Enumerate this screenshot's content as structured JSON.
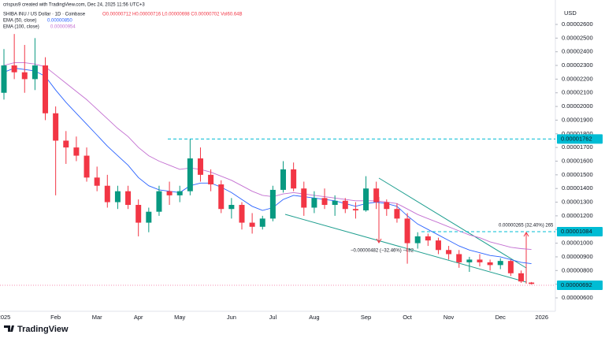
{
  "header": {
    "credit": "crispus9 created with TradingView.com, Dec 24, 2025 11:56 UTC+3",
    "symbol": "SHIBA INU / US Dollar · 1D · Coinbase",
    "ohlc": "O0.00000712 H0.00000716 L0.00000698 C0.00000702 Vol60.64B",
    "currency": "USD",
    "logo": "TradingView"
  },
  "chart_data": {
    "type": "candlestick",
    "categories": [
      "2025",
      null,
      null,
      null,
      null,
      "Feb",
      null,
      null,
      null,
      "Mar",
      null,
      null,
      null,
      "Apr",
      null,
      null,
      null,
      "May",
      null,
      null,
      null,
      null,
      "Jun",
      null,
      null,
      null,
      "Jul",
      null,
      null,
      null,
      "Aug",
      null,
      null,
      null,
      null,
      "Sep",
      null,
      null,
      null,
      "Oct",
      null,
      null,
      null,
      "Nov",
      null,
      null,
      null,
      null,
      "Dec",
      null,
      null,
      null,
      "2026"
    ],
    "open": [
      2.1e-05,
      2.3e-05,
      2.25e-05,
      2.2e-05,
      2.3e-05,
      1.95e-05,
      1.75e-05,
      1.7e-05,
      1.64e-05,
      1.48e-05,
      1.42e-05,
      1.3e-05,
      1.38e-05,
      1.28e-05,
      1.15e-05,
      1.23e-05,
      1.38e-05,
      1.35e-05,
      1.38e-05,
      1.62e-05,
      1.5e-05,
      1.43e-05,
      1.25e-05,
      1.28e-05,
      1.15e-05,
      1.12e-05,
      1.18e-05,
      1.39e-05,
      1.54e-05,
      1.4e-05,
      1.26e-05,
      1.33e-05,
      1.28e-05,
      1.31e-05,
      1.25e-05,
      1.24e-05,
      1.4e-05,
      1.3e-05,
      1.25e-05,
      1.18e-05,
      1e-05,
      1.05e-05,
      1.02e-05,
      9.5e-06,
      9.2e-06,
      8.6e-06,
      8.8e-06,
      8.6e-06,
      8.4e-06,
      8.7e-06,
      7.8e-06,
      7.12e-06,
      null
    ],
    "high": [
      2.42e-05,
      2.53e-05,
      2.45e-05,
      2.5e-05,
      2.36e-05,
      2e-05,
      1.82e-05,
      1.78e-05,
      1.7e-05,
      1.56e-05,
      1.5e-05,
      1.42e-05,
      1.42e-05,
      1.32e-05,
      1.26e-05,
      1.42e-05,
      1.45e-05,
      1.42e-05,
      1.762e-05,
      1.7e-05,
      1.54e-05,
      1.46e-05,
      1.33e-05,
      1.3e-05,
      1.22e-05,
      1.2e-05,
      1.42e-05,
      1.6e-05,
      1.59e-05,
      1.45e-05,
      1.38e-05,
      1.4e-05,
      1.35e-05,
      1.33e-05,
      1.3e-05,
      1.49e-05,
      1.45e-05,
      1.32e-05,
      1.29e-05,
      1.22e-05,
      1.08e-05,
      1.07e-05,
      1.04e-05,
      9.8e-06,
      9.5e-06,
      9e-06,
      9.2e-06,
      8.8e-06,
      8.9e-06,
      8.8e-06,
      8e-06,
      7.16e-06,
      null
    ],
    "low": [
      2.05e-05,
      2.2e-05,
      2.1e-05,
      2.12e-05,
      1.9e-05,
      1.35e-05,
      1.58e-05,
      1.6e-05,
      1.45e-05,
      1.38e-05,
      1.26e-05,
      1.25e-05,
      1.25e-05,
      1.05e-05,
      1.08e-05,
      1.2e-05,
      1.28e-05,
      1.3e-05,
      1.35e-05,
      1.45e-05,
      1.38e-05,
      1.22e-05,
      1.18e-05,
      1.1e-05,
      1.07e-05,
      1.1e-05,
      1.16e-05,
      1.37e-05,
      1.38e-05,
      1.2e-05,
      1.22e-05,
      1.25e-05,
      1.2e-05,
      1.22e-05,
      1.18e-05,
      1.23e-05,
      1.25e-05,
      1.2e-05,
      1.15e-05,
      8.5e-06,
      9.6e-06,
      9.8e-06,
      9.2e-06,
      8.8e-06,
      8.2e-06,
      7.9e-06,
      8.3e-06,
      8e-06,
      8.1e-06,
      7.6e-06,
      7.1e-06,
      6.98e-06,
      null
    ],
    "close": [
      2.3e-05,
      2.25e-05,
      2.2e-05,
      2.3e-05,
      1.95e-05,
      1.75e-05,
      1.7e-05,
      1.64e-05,
      1.48e-05,
      1.42e-05,
      1.3e-05,
      1.38e-05,
      1.28e-05,
      1.15e-05,
      1.23e-05,
      1.38e-05,
      1.35e-05,
      1.38e-05,
      1.62e-05,
      1.5e-05,
      1.43e-05,
      1.25e-05,
      1.28e-05,
      1.15e-05,
      1.12e-05,
      1.18e-05,
      1.39e-05,
      1.54e-05,
      1.4e-05,
      1.26e-05,
      1.33e-05,
      1.28e-05,
      1.31e-05,
      1.25e-05,
      1.24e-05,
      1.4e-05,
      1.3e-05,
      1.25e-05,
      1.18e-05,
      1e-05,
      1.05e-05,
      1.02e-05,
      9.5e-06,
      9.2e-06,
      8.6e-06,
      8.8e-06,
      8.6e-06,
      8.4e-06,
      8.7e-06,
      7.8e-06,
      7.2e-06,
      7.02e-06,
      null
    ],
    "up_color": "#089981",
    "down_color": "#f23645",
    "lines": [
      {
        "name": "EMA (50, close)",
        "legend_value": "0.00000850",
        "color": "#2962ff",
        "values": [
          2.25e-05,
          2.28e-05,
          2.27e-05,
          2.26e-05,
          2.22e-05,
          2.12e-05,
          2.03e-05,
          1.95e-05,
          1.87e-05,
          1.79e-05,
          1.71e-05,
          1.64e-05,
          1.57e-05,
          1.48e-05,
          1.42e-05,
          1.39e-05,
          1.38e-05,
          1.37e-05,
          1.42e-05,
          1.44e-05,
          1.44e-05,
          1.41e-05,
          1.37e-05,
          1.32e-05,
          1.27e-05,
          1.24e-05,
          1.26e-05,
          1.32e-05,
          1.35e-05,
          1.34e-05,
          1.33e-05,
          1.32e-05,
          1.31e-05,
          1.29e-05,
          1.27e-05,
          1.29e-05,
          1.3e-05,
          1.29e-05,
          1.27e-05,
          1.2e-05,
          1.14e-05,
          1.1e-05,
          1.06e-05,
          1.02e-05,
          9.8e-06,
          9.5e-06,
          9.3e-06,
          9.1e-06,
          9e-06,
          8.8e-06,
          8.6e-06,
          8.5e-06,
          null
        ]
      },
      {
        "name": "EMA (100, close)",
        "legend_value": "0.00000954",
        "color": "#c36fd1",
        "values": [
          2.3e-05,
          2.32e-05,
          2.32e-05,
          2.31e-05,
          2.29e-05,
          2.23e-05,
          2.17e-05,
          2.11e-05,
          2.05e-05,
          1.98e-05,
          1.91e-05,
          1.84e-05,
          1.78e-05,
          1.7e-05,
          1.64e-05,
          1.6e-05,
          1.57e-05,
          1.54e-05,
          1.55e-05,
          1.54e-05,
          1.52e-05,
          1.49e-05,
          1.46e-05,
          1.42e-05,
          1.38e-05,
          1.35e-05,
          1.34e-05,
          1.36e-05,
          1.37e-05,
          1.36e-05,
          1.35e-05,
          1.34e-05,
          1.33e-05,
          1.32e-05,
          1.31e-05,
          1.31e-05,
          1.31e-05,
          1.3e-05,
          1.29e-05,
          1.25e-05,
          1.21e-05,
          1.18e-05,
          1.15e-05,
          1.12e-05,
          1.09e-05,
          1.06e-05,
          1.04e-05,
          1.01e-05,
          9.9e-06,
          9.7e-06,
          9.6e-06,
          9.54e-06,
          null
        ]
      }
    ],
    "levels": [
      {
        "value": 1.762e-05,
        "color": "#00bcd4",
        "style": "dash"
      },
      {
        "value": 1.084e-05,
        "color": "#00bcd4",
        "style": "dash"
      },
      {
        "value": 6.92e-06,
        "color": "#f48fb1",
        "style": "dot"
      }
    ],
    "annotations": [
      "−0.00000482 (−32.46%) −482",
      "0.00000265 (32.40%) 265"
    ],
    "ylim": [
      5.02e-06,
      2.721e-05
    ],
    "yticks": [
      {
        "value": 6e-06,
        "label": "0.00000600"
      },
      {
        "value": 7e-06,
        "label": "0.00000700"
      },
      {
        "value": 8e-06,
        "label": "0.00000800"
      },
      {
        "value": 9e-06,
        "label": "0.00000900"
      },
      {
        "value": 1e-05,
        "label": "0.00001000"
      },
      {
        "value": 1.1e-05,
        "label": "0.00001100"
      },
      {
        "value": 1.2e-05,
        "label": "0.00001200"
      },
      {
        "value": 1.3e-05,
        "label": "0.00001300"
      },
      {
        "value": 1.4e-05,
        "label": "0.00001400"
      },
      {
        "value": 1.5e-05,
        "label": "0.00001500"
      },
      {
        "value": 1.6e-05,
        "label": "0.00001600"
      },
      {
        "value": 1.7e-05,
        "label": "0.00001700"
      },
      {
        "value": 1.8e-05,
        "label": "0.00001800"
      },
      {
        "value": 1.9e-05,
        "label": "0.00001900"
      },
      {
        "value": 2e-05,
        "label": "0.00002000"
      },
      {
        "value": 2.1e-05,
        "label": "0.00002100"
      },
      {
        "value": 2.2e-05,
        "label": "0.00002200"
      },
      {
        "value": 2.3e-05,
        "label": "0.00002300"
      },
      {
        "value": 2.4e-05,
        "label": "0.00002400"
      },
      {
        "value": 2.5e-05,
        "label": "0.00002500"
      },
      {
        "value": 2.6e-05,
        "label": "0.00002600"
      }
    ],
    "grid": false
  }
}
